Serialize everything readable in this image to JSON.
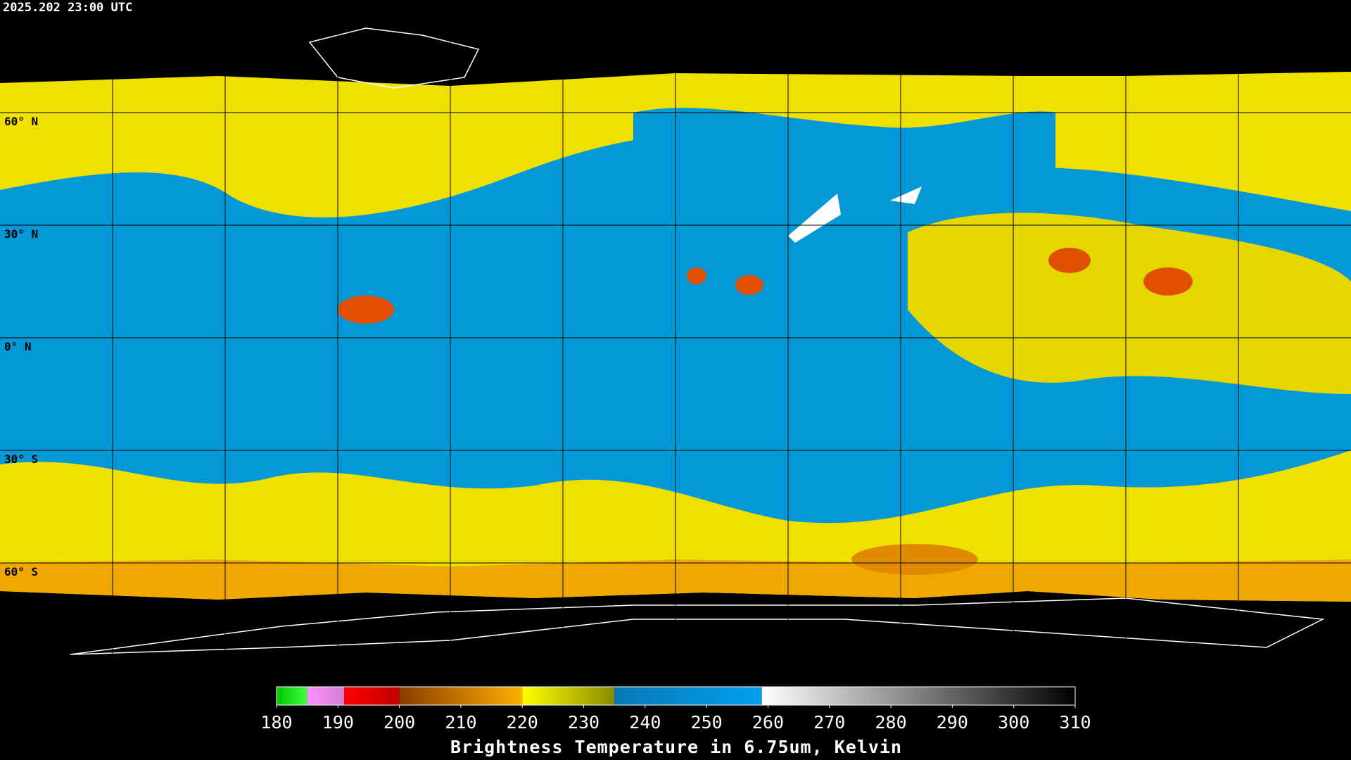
{
  "header": {
    "timestamp": "2025.202 23:00 UTC"
  },
  "map": {
    "lat_labels": [
      {
        "value": 60,
        "label": "60° N"
      },
      {
        "value": 30,
        "label": "30° N"
      },
      {
        "value": 0,
        "label": "0° N"
      },
      {
        "value": -30,
        "label": "30° S"
      },
      {
        "value": -60,
        "label": "60° S"
      }
    ],
    "lat_range": [
      90,
      -90
    ]
  },
  "colorbar": {
    "title": "Brightness Temperature in 6.75um, Kelvin",
    "range": [
      180,
      310
    ],
    "ticks": [
      180,
      190,
      200,
      210,
      220,
      230,
      240,
      250,
      260,
      270,
      280,
      290,
      300,
      310
    ],
    "segments": [
      {
        "from": 180,
        "to": 185,
        "colors": [
          "#00c800",
          "#40ff40"
        ]
      },
      {
        "from": 185,
        "to": 191,
        "colors": [
          "#ff90ff",
          "#d080d0"
        ]
      },
      {
        "from": 191,
        "to": 200,
        "colors": [
          "#ff0000",
          "#c00000"
        ]
      },
      {
        "from": 200,
        "to": 220,
        "colors": [
          "#8a3c00",
          "#ffb000"
        ]
      },
      {
        "from": 220,
        "to": 235,
        "colors": [
          "#ffff00",
          "#8a8a00"
        ]
      },
      {
        "from": 235,
        "to": 259,
        "colors": [
          "#0a78b4",
          "#00a0f0"
        ]
      },
      {
        "from": 259,
        "to": 310,
        "colors": [
          "#ffffff",
          "#000000"
        ]
      }
    ]
  }
}
